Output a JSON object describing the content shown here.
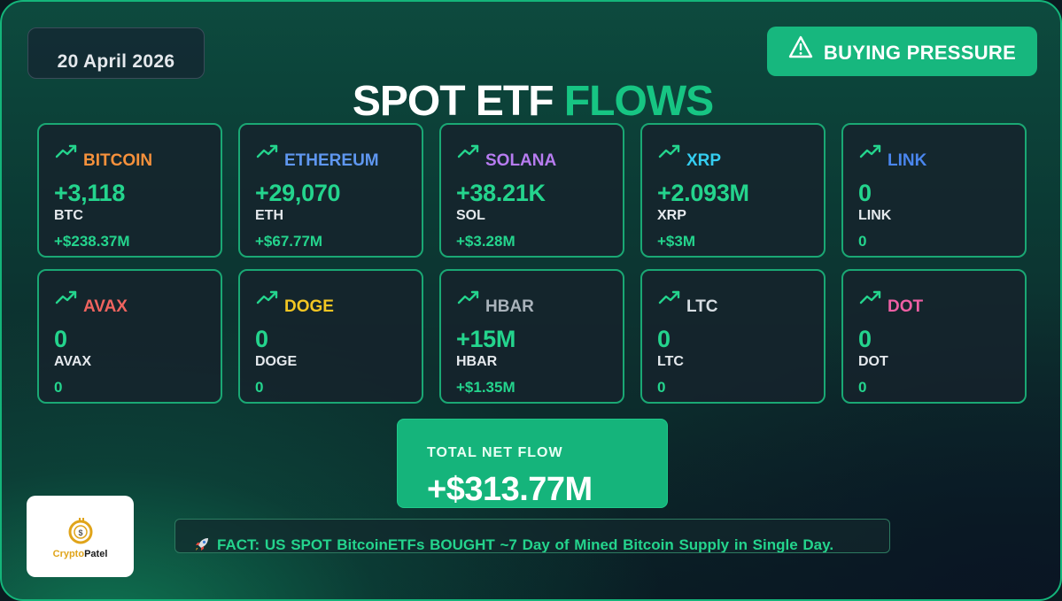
{
  "date": "20 April 2026",
  "sentiment": {
    "label": "BUYING PRESSURE",
    "icon": "warning-icon",
    "color": "#17b77e"
  },
  "title": {
    "part1": "SPOT ETF",
    "part2": "FLOWS"
  },
  "assets": [
    {
      "name": "BITCOIN",
      "color": "#f6913c",
      "quantity": "+3,118",
      "symbol": "BTC",
      "usd": "+$238.37M",
      "icon": "trend-up-icon"
    },
    {
      "name": "ETHEREUM",
      "color": "#5f97f0",
      "quantity": "+29,070",
      "symbol": "ETH",
      "usd": "+$67.77M",
      "icon": "trend-up-icon"
    },
    {
      "name": "SOLANA",
      "color": "#b77cf0",
      "quantity": "+38.21K",
      "symbol": "SOL",
      "usd": "+$3.28M",
      "icon": "trend-up-icon"
    },
    {
      "name": "XRP",
      "color": "#34cdf0",
      "quantity": "+2.093M",
      "symbol": "XRP",
      "usd": "+$3M",
      "icon": "trend-up-icon"
    },
    {
      "name": "LINK",
      "color": "#4a86ee",
      "quantity": "0",
      "symbol": "LINK",
      "usd": "0",
      "icon": "trend-up-icon"
    },
    {
      "name": "AVAX",
      "color": "#f0645f",
      "quantity": "0",
      "symbol": "AVAX",
      "usd": "0",
      "icon": "trend-up-icon"
    },
    {
      "name": "DOGE",
      "color": "#f3c623",
      "quantity": "0",
      "symbol": "DOGE",
      "usd": "0",
      "icon": "trend-up-icon"
    },
    {
      "name": "HBAR",
      "color": "#a9b2ba",
      "quantity": "+15M",
      "symbol": "HBAR",
      "usd": "+$1.35M",
      "icon": "trend-up-icon"
    },
    {
      "name": "LTC",
      "color": "#d7dde2",
      "quantity": "0",
      "symbol": "LTC",
      "usd": "0",
      "icon": "trend-up-icon"
    },
    {
      "name": "DOT",
      "color": "#ee5fa4",
      "quantity": "0",
      "symbol": "DOT",
      "usd": "0",
      "icon": "trend-up-icon"
    }
  ],
  "total": {
    "label": "TOTAL NET FLOW",
    "value": "+$313.77M"
  },
  "logo": {
    "part1": "Crypto",
    "part2": "Patel"
  },
  "fact": {
    "icon": "rocket-icon",
    "text": "FACT: US SPOT BitcoinETFs BOUGHT ~7 Day of Mined Bitcoin Supply in Single Day."
  },
  "colors": {
    "accent": "#17c583",
    "positive": "#24d48d",
    "card_border": "#1aa874"
  }
}
